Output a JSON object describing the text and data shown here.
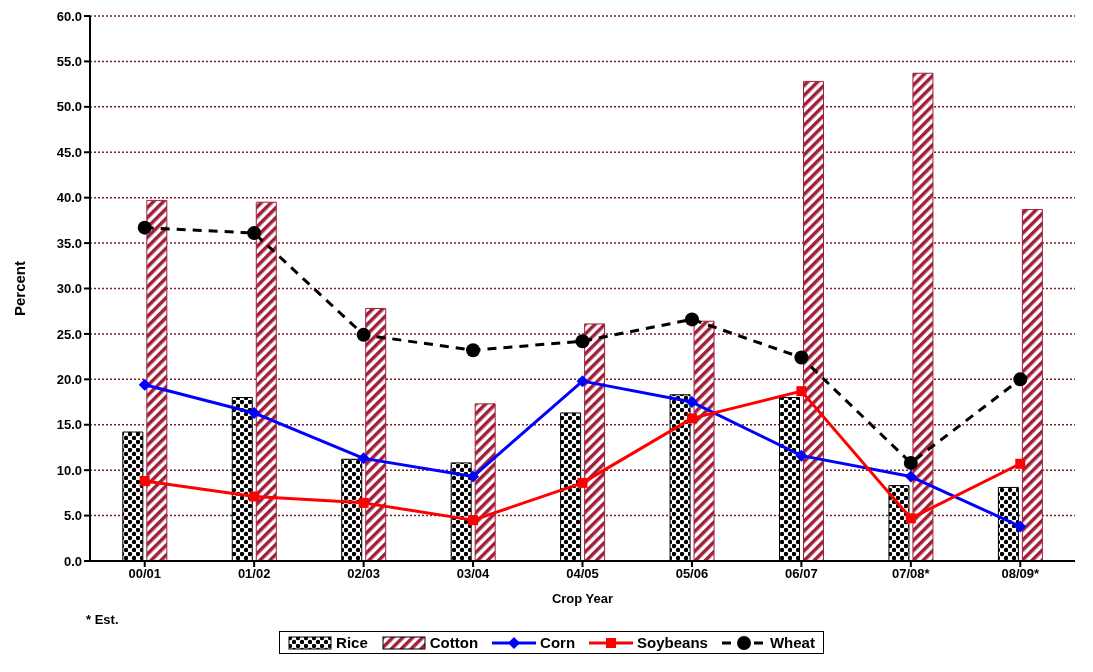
{
  "chart_data": {
    "type": "bar",
    "xlabel": "Crop Year",
    "ylabel": "Percent",
    "categories": [
      "00/01",
      "01/02",
      "02/03",
      "03/04",
      "04/05",
      "05/06",
      "06/07",
      "07/08*",
      "08/09*"
    ],
    "series": [
      {
        "name": "Rice",
        "color": "#000000",
        "values": [
          14.2,
          18.0,
          11.2,
          10.8,
          16.3,
          18.3,
          18.0,
          8.3,
          8.1
        ]
      },
      {
        "name": "Cotton",
        "color": "#a0203c",
        "values": [
          39.7,
          39.5,
          27.8,
          17.3,
          26.1,
          26.4,
          52.8,
          53.7,
          38.7
        ]
      },
      {
        "name": "Corn",
        "type": "line",
        "color": "#0000ff",
        "marker": "diamond",
        "line_style": "solid",
        "values": [
          19.4,
          16.3,
          11.3,
          9.3,
          19.8,
          17.5,
          11.6,
          9.3,
          3.8
        ]
      },
      {
        "name": "Soybeans",
        "type": "line",
        "color": "#ff0000",
        "marker": "square",
        "line_style": "solid",
        "values": [
          8.8,
          7.1,
          6.4,
          4.5,
          8.6,
          15.7,
          18.7,
          4.7,
          10.7
        ]
      },
      {
        "name": "Wheat",
        "type": "line",
        "color": "#000000",
        "marker": "circle",
        "line_style": "dashed",
        "values": [
          36.7,
          36.1,
          24.9,
          23.2,
          24.2,
          26.6,
          22.4,
          10.8,
          20.0
        ]
      }
    ],
    "ylim": [
      0,
      60
    ],
    "yticks": [
      {
        "value": 0,
        "label": "0.0"
      },
      {
        "value": 5,
        "label": "5.0"
      },
      {
        "value": 10,
        "label": "10.0"
      },
      {
        "value": 15,
        "label": "15.0"
      },
      {
        "value": 20,
        "label": "20.0"
      },
      {
        "value": 25,
        "label": "25.0"
      },
      {
        "value": 30,
        "label": "30.0"
      },
      {
        "value": 35,
        "label": "35.0"
      },
      {
        "value": 40,
        "label": "40.0"
      },
      {
        "value": 45,
        "label": "45.0"
      },
      {
        "value": 50,
        "label": "50.0"
      },
      {
        "value": 55,
        "label": "55.0"
      },
      {
        "value": 60,
        "label": "60.0"
      }
    ],
    "grid": "y",
    "legend": "bottom",
    "annotations": [
      "* Est."
    ]
  }
}
